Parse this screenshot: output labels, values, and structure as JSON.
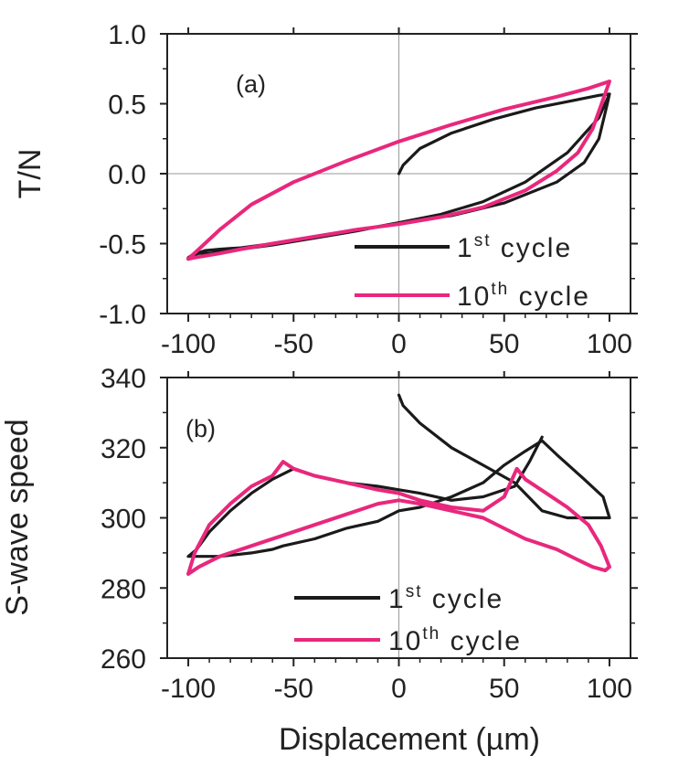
{
  "chart_data": [
    {
      "type": "line",
      "panel_label": "(a)",
      "ylabel": "T/N",
      "xlabel": "",
      "xlim": [
        -110,
        110
      ],
      "ylim": [
        -1.0,
        1.0
      ],
      "x_ticks": [
        -100,
        -50,
        0,
        50,
        100
      ],
      "x_tick_labels": [
        "-100",
        "-50",
        "0",
        "50",
        "100"
      ],
      "y_ticks": [
        -1.0,
        -0.5,
        0.0,
        0.5,
        1.0
      ],
      "y_tick_labels": [
        "-1.0",
        "-0.5",
        "0.0",
        "0.5",
        "1.0"
      ],
      "reference_lines": {
        "x": 0,
        "y": 0
      },
      "legend_position": "bottom-right",
      "series": [
        {
          "name": "1st cycle",
          "legend": {
            "base": "1",
            "sup": "st",
            "rest": " cycle"
          },
          "color": "#1a1a1a",
          "x": [
            0,
            2,
            10,
            25,
            45,
            65,
            85,
            95,
            100,
            99,
            95,
            88,
            75,
            50,
            25,
            0,
            -25,
            -50,
            -75,
            -85,
            -92,
            -96,
            -98,
            -100,
            -95,
            -90,
            -80,
            -60,
            -40,
            -20,
            0,
            20,
            40,
            60,
            80,
            95,
            100
          ],
          "y": [
            0.0,
            0.06,
            0.18,
            0.29,
            0.39,
            0.47,
            0.53,
            0.56,
            0.57,
            0.5,
            0.25,
            0.08,
            -0.06,
            -0.21,
            -0.3,
            -0.35,
            -0.42,
            -0.48,
            -0.53,
            -0.54,
            -0.55,
            -0.57,
            -0.58,
            -0.6,
            -0.57,
            -0.57,
            -0.55,
            -0.51,
            -0.46,
            -0.41,
            -0.35,
            -0.29,
            -0.2,
            -0.06,
            0.15,
            0.4,
            0.57
          ]
        },
        {
          "name": "10th cycle",
          "legend": {
            "base": "10",
            "sup": "th",
            "rest": " cycle"
          },
          "color": "#e8287c",
          "x": [
            -100,
            -95,
            -85,
            -70,
            -50,
            -25,
            0,
            25,
            50,
            75,
            90,
            100,
            97,
            92,
            85,
            75,
            60,
            40,
            20,
            0,
            -20,
            -40,
            -60,
            -75,
            -85,
            -93,
            -97,
            -100
          ],
          "y": [
            -0.61,
            -0.54,
            -0.4,
            -0.22,
            -0.06,
            0.09,
            0.23,
            0.35,
            0.46,
            0.55,
            0.61,
            0.66,
            0.53,
            0.32,
            0.15,
            0.02,
            -0.12,
            -0.24,
            -0.31,
            -0.36,
            -0.4,
            -0.45,
            -0.5,
            -0.54,
            -0.57,
            -0.59,
            -0.6,
            -0.61
          ]
        }
      ]
    },
    {
      "type": "line",
      "panel_label": "(b)",
      "ylabel": "S-wave speed",
      "xlabel": "Displacement (µm)",
      "xlim": [
        -110,
        110
      ],
      "ylim": [
        260,
        340
      ],
      "x_ticks": [
        -100,
        -50,
        0,
        50,
        100
      ],
      "x_tick_labels": [
        "-100",
        "-50",
        "0",
        "50",
        "100"
      ],
      "y_ticks": [
        260,
        280,
        300,
        320,
        340
      ],
      "y_tick_labels": [
        "260",
        "280",
        "300",
        "320",
        "340"
      ],
      "reference_lines": {
        "x": 0
      },
      "legend_position": "bottom-right",
      "series": [
        {
          "name": "1st cycle",
          "legend": {
            "base": "1",
            "sup": "st",
            "rest": " cycle"
          },
          "color": "#1a1a1a",
          "x": [
            0,
            2,
            10,
            25,
            40,
            55,
            68,
            80,
            95,
            100,
            97,
            88,
            75,
            68,
            60,
            50,
            40,
            25,
            10,
            0,
            -10,
            -25,
            -40,
            -55,
            -60,
            -70,
            -85,
            -95,
            -100,
            -96,
            -90,
            -80,
            -70,
            -60,
            -50,
            -40,
            -25,
            -10,
            0,
            10,
            25,
            40,
            55,
            62,
            68
          ],
          "y": [
            335,
            332,
            327,
            320,
            315,
            310,
            302,
            300,
            300,
            300,
            306,
            311,
            318,
            322,
            319,
            315,
            310,
            306,
            303,
            302,
            299,
            297,
            294,
            292,
            291,
            290,
            289,
            289,
            289,
            291,
            296,
            302,
            307,
            311,
            314,
            312,
            310,
            309,
            308,
            307,
            305,
            306,
            309,
            316,
            323
          ]
        },
        {
          "name": "10th cycle",
          "legend": {
            "base": "10",
            "sup": "th",
            "rest": " cycle"
          },
          "color": "#e8287c",
          "x": [
            -100,
            -97,
            -90,
            -80,
            -70,
            -60,
            -55,
            -50,
            -40,
            -25,
            -10,
            0,
            10,
            25,
            40,
            50,
            56,
            60,
            70,
            80,
            90,
            96,
            100,
            98,
            92,
            85,
            75,
            60,
            50,
            40,
            25,
            10,
            0,
            -10,
            -25,
            -40,
            -55,
            -70,
            -85,
            -95,
            -100
          ],
          "y": [
            284,
            290,
            298,
            304,
            309,
            312,
            316,
            314,
            312,
            310,
            308,
            307,
            305,
            303,
            302,
            306,
            314,
            311,
            307,
            303,
            298,
            292,
            286,
            285,
            286,
            288,
            291,
            294,
            297,
            300,
            302,
            304,
            305,
            304,
            301,
            298,
            295,
            292,
            289,
            286,
            284
          ]
        }
      ]
    }
  ]
}
